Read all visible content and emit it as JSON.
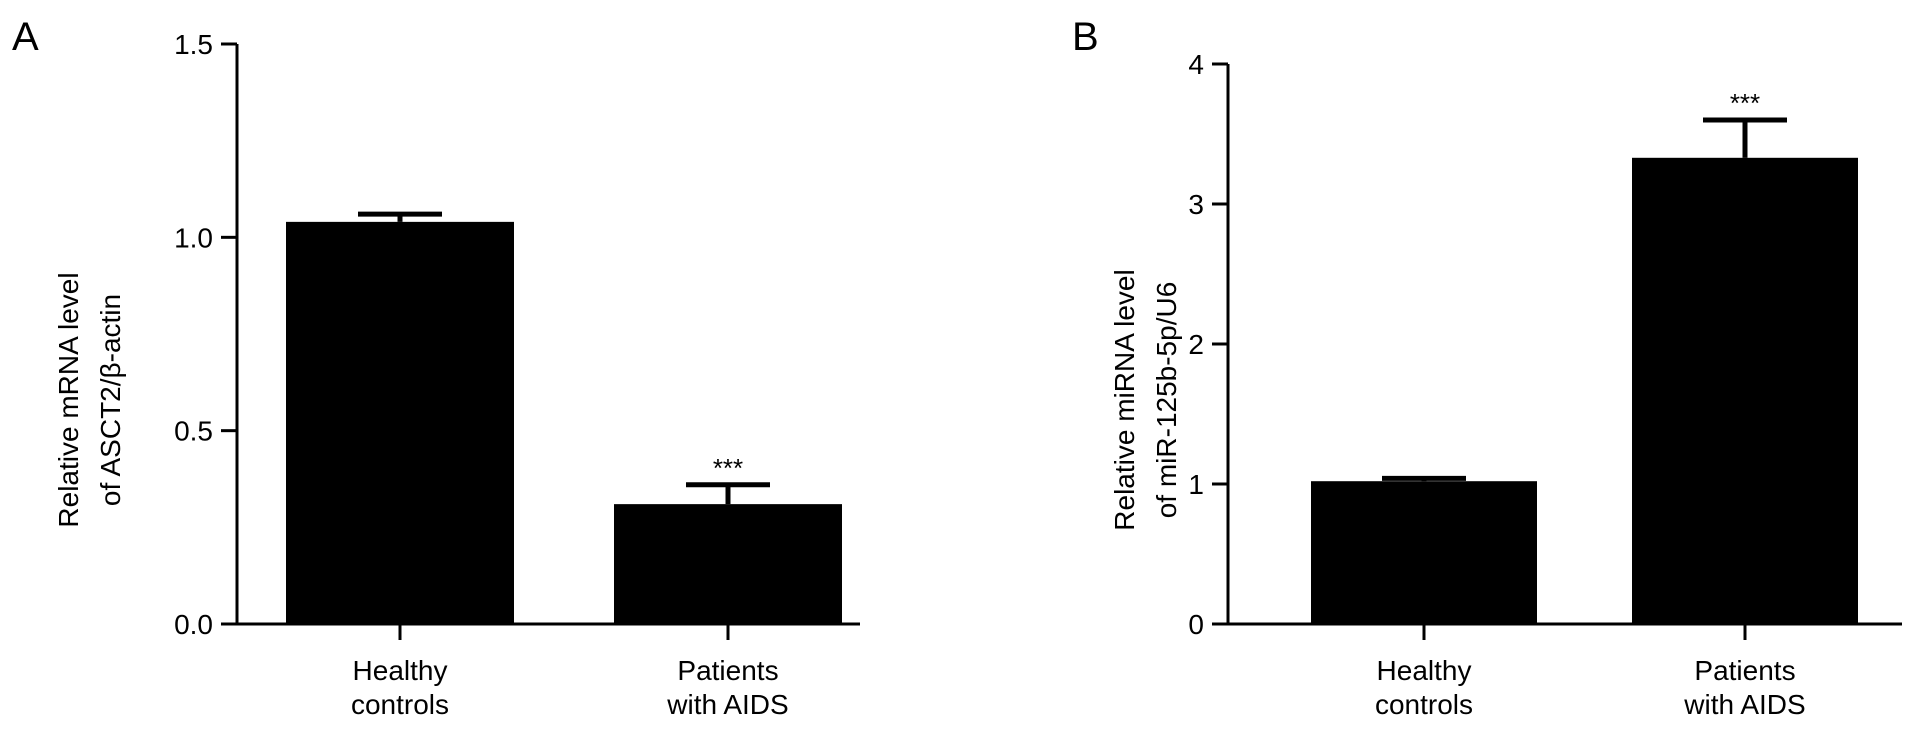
{
  "chart_data": [
    {
      "type": "bar",
      "panel": "A",
      "categories": [
        [
          "Healthy",
          "controls"
        ],
        [
          "Patients",
          "with AIDS"
        ]
      ],
      "values": [
        1.04,
        0.31
      ],
      "error": [
        0.02,
        0.05
      ],
      "significance": [
        "",
        "***"
      ],
      "ylabel": [
        "Relative mRNA level",
        "of ASCT2/β-actin"
      ],
      "ylim": [
        0,
        1.5
      ],
      "yticks": [
        "0.0",
        "0.5",
        "1.0",
        "1.5"
      ],
      "ytick_values": [
        0,
        0.5,
        1.0,
        1.5
      ],
      "bar_color": "#000000"
    },
    {
      "type": "bar",
      "panel": "B",
      "categories": [
        [
          "Healthy",
          "controls"
        ],
        [
          "Patients",
          "with AIDS"
        ]
      ],
      "values": [
        1.02,
        3.33
      ],
      "error": [
        0.02,
        0.27
      ],
      "significance": [
        "",
        "***"
      ],
      "ylabel": [
        "Relative miRNA level",
        "of miR-125b-5p/U6"
      ],
      "ylim": [
        0,
        4
      ],
      "yticks": [
        "0",
        "1",
        "2",
        "3",
        "4"
      ],
      "ytick_values": [
        0,
        1,
        2,
        3,
        4
      ],
      "bar_color": "#000000"
    }
  ]
}
